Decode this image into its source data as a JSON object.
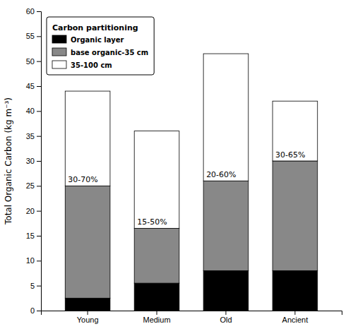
{
  "chart_data": {
    "type": "bar",
    "stacked": true,
    "categories": [
      "Young",
      "Medium",
      "Old",
      "Ancient"
    ],
    "series": [
      {
        "name": "Organic layer",
        "color": "#000000",
        "values": [
          2.5,
          5.5,
          8.0,
          8.0
        ]
      },
      {
        "name": "base organic-35 cm",
        "color": "#888888",
        "values": [
          22.5,
          11.0,
          18.0,
          22.0
        ]
      },
      {
        "name": "35-100 cm",
        "color": "#ffffff",
        "values": [
          19.0,
          19.5,
          25.5,
          12.0
        ]
      }
    ],
    "y_label": "Total Organic Carbon (kg m⁻³)",
    "ylim": [
      0,
      60
    ],
    "yticks": [
      0,
      5,
      10,
      15,
      20,
      25,
      30,
      35,
      40,
      45,
      50,
      55,
      60
    ],
    "legend_title": "Carbon partitioning",
    "legend": "upper-left",
    "grid": false,
    "annotations": [
      {
        "text": "30-70%",
        "x": "Young"
      },
      {
        "text": "15-50%",
        "x": "Medium"
      },
      {
        "text": "20-60%",
        "x": "Old"
      },
      {
        "text": "30-65%",
        "x": "Ancient"
      }
    ]
  }
}
